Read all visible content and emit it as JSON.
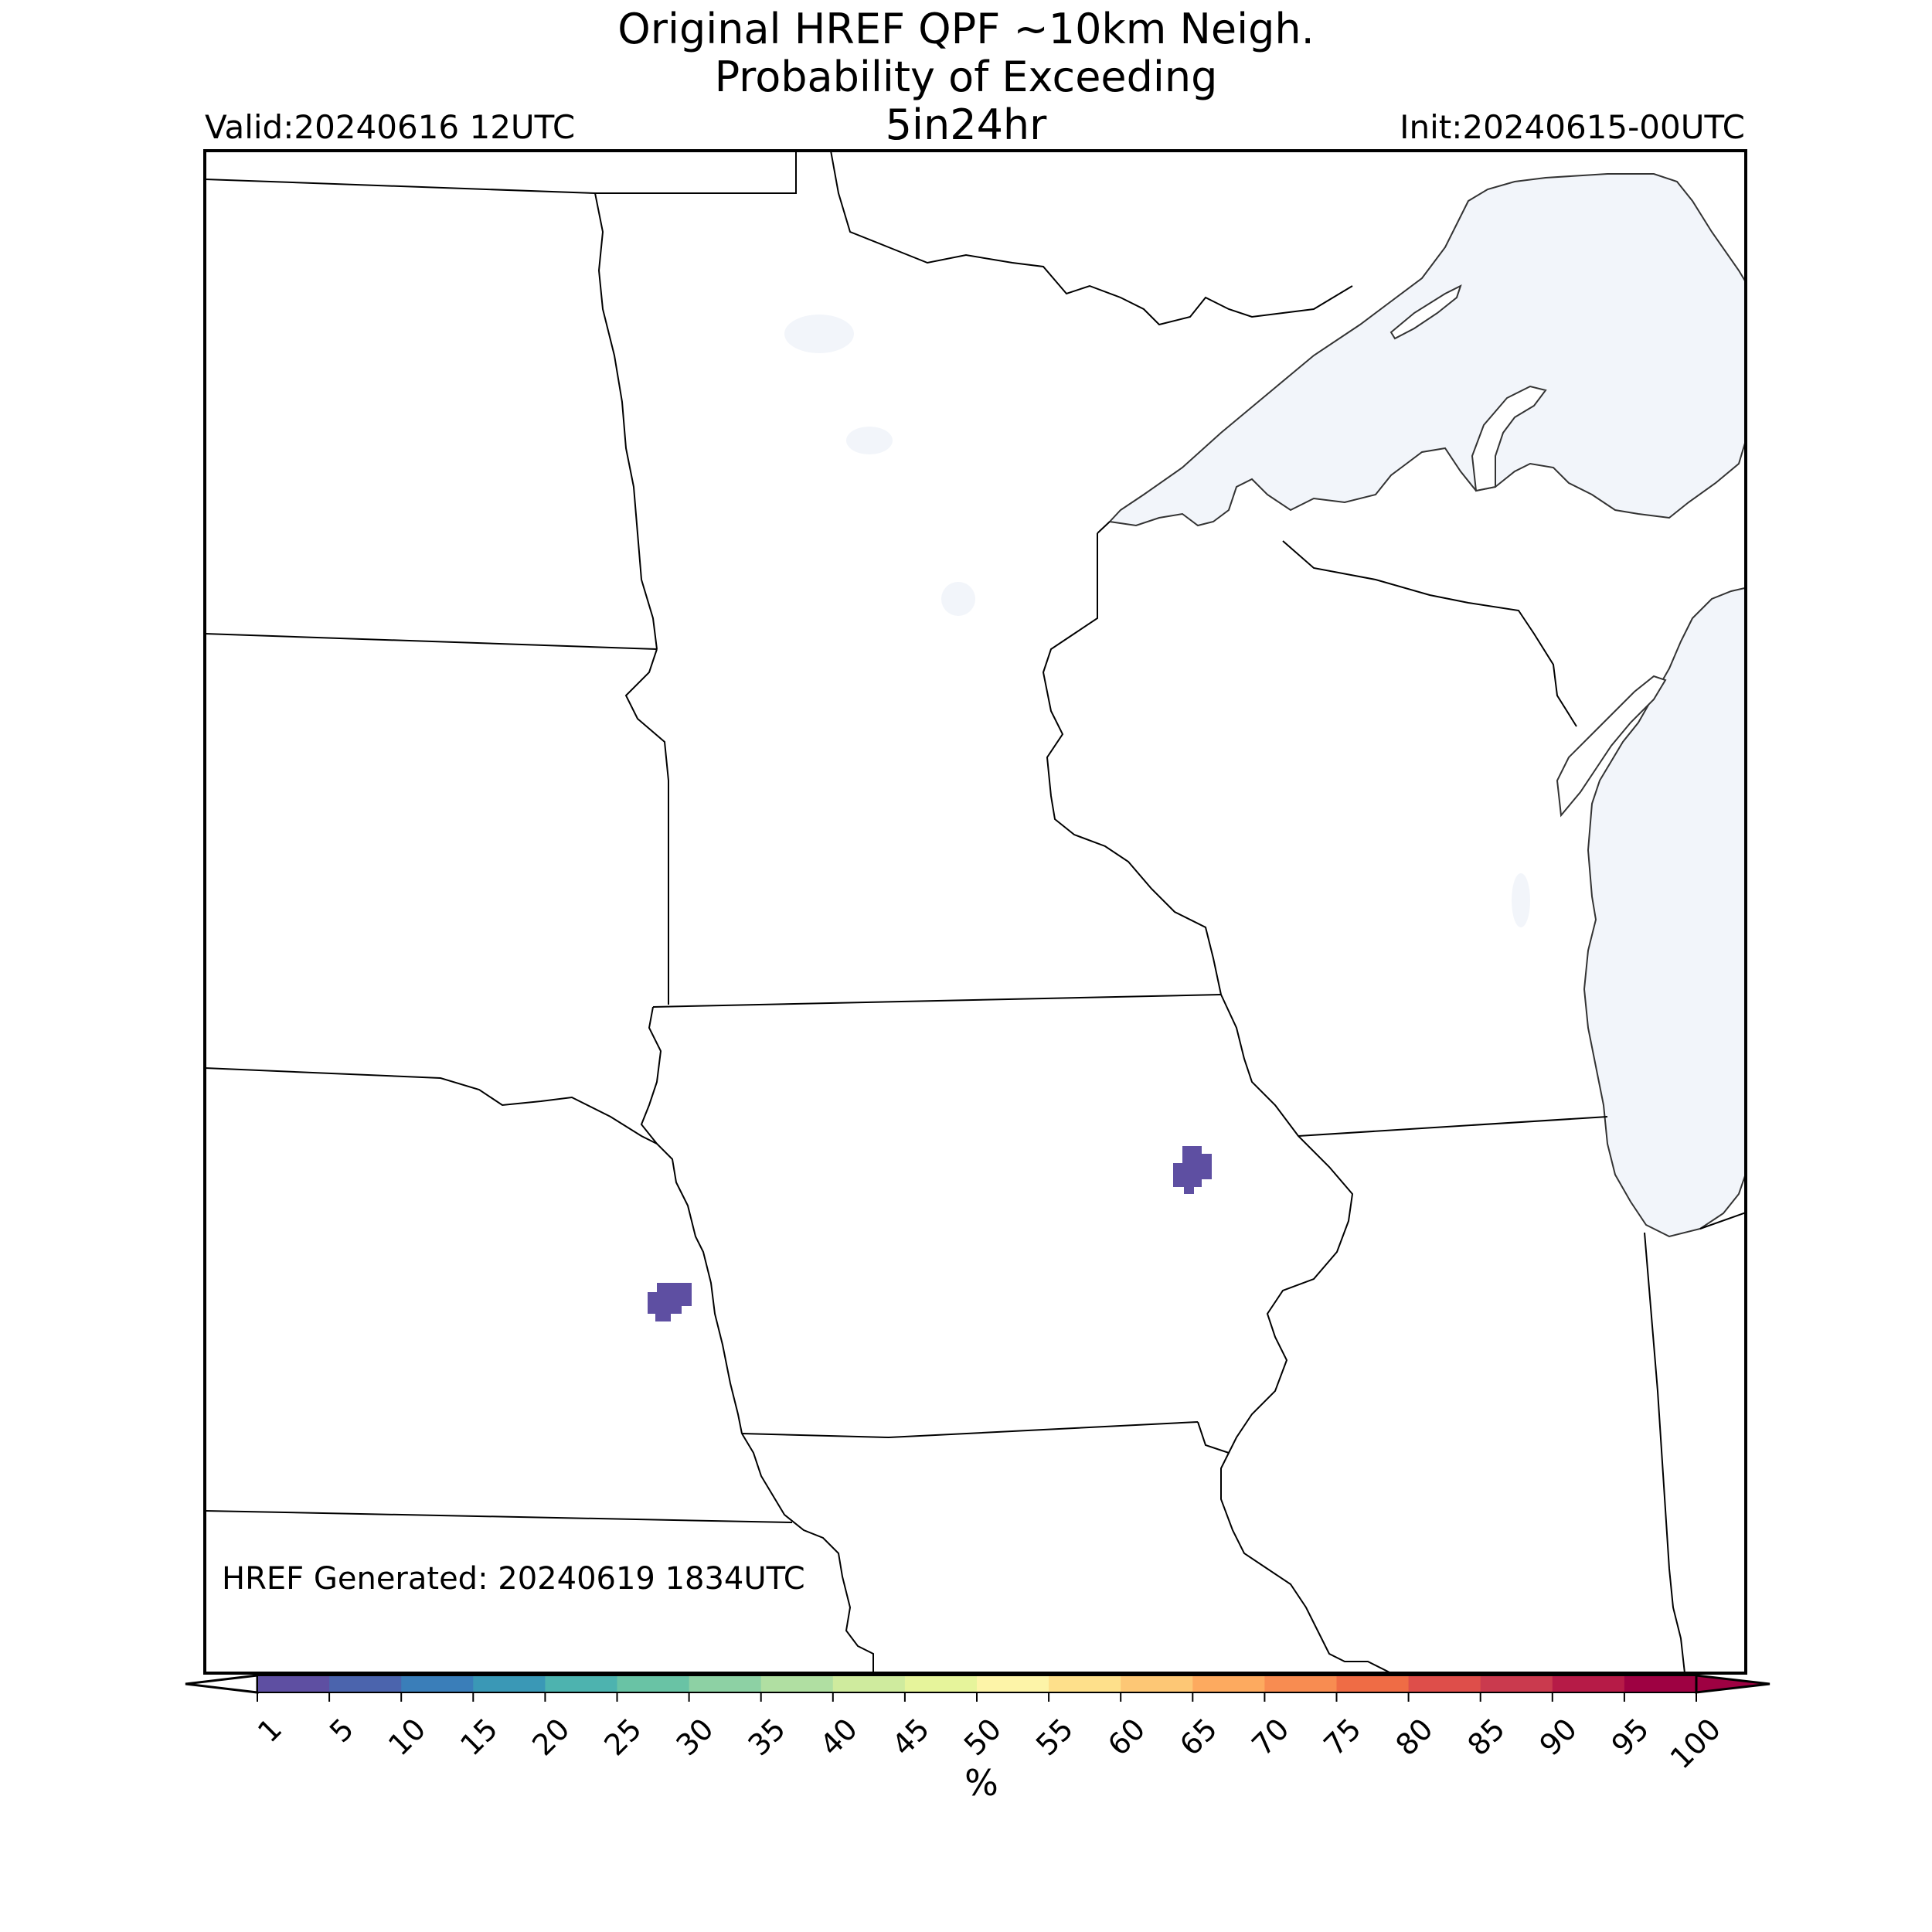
{
  "title": {
    "line1": "Original HREF QPF ~10km Neigh.",
    "line2": "Probability of Exceeding",
    "line3": "5in24hr"
  },
  "valid": "Valid:20240616 12UTC",
  "init": "Init:20240615-00UTC",
  "credit": "HREF Generated: 20240619 1834UTC",
  "colorbar": {
    "unit": "%",
    "ticks": [
      "1",
      "5",
      "10",
      "15",
      "20",
      "25",
      "30",
      "35",
      "40",
      "45",
      "50",
      "55",
      "60",
      "65",
      "70",
      "75",
      "80",
      "85",
      "90",
      "95",
      "100"
    ],
    "colors": [
      "#5e4fa2",
      "#4b64ad",
      "#3a7eb9",
      "#3a98b6",
      "#4db3af",
      "#69c3a5",
      "#8dd1a4",
      "#b0dfa2",
      "#cfeb9e",
      "#e6f49b",
      "#fdf4a8",
      "#fee08b",
      "#fdc775",
      "#fdaa5f",
      "#f88c51",
      "#ef6c45",
      "#de4e4a",
      "#ca3a4e",
      "#b61b47",
      "#9e0142"
    ],
    "under_color": "#ffffff",
    "over_color": "#9e0142"
  },
  "map": {
    "water_color": "#f2f5fa",
    "land_color": "#ffffff",
    "border_color": "#000000",
    "probability_areas": [
      {
        "location": "northeastern Iowa",
        "category": "1-5%",
        "color": "#5e4fa2"
      },
      {
        "location": "eastern Nebraska near Missouri River",
        "category": "1-5%",
        "color": "#5e4fa2"
      }
    ]
  }
}
